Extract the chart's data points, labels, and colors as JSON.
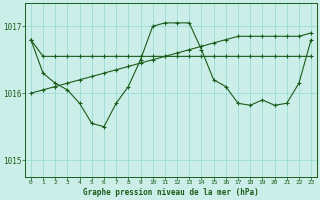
{
  "title": "Graphe pression niveau de la mer (hPa)",
  "background_color": "#cceee8",
  "grid_color": "#99ddd5",
  "line_color": "#1a5c1a",
  "ylim": [
    1014.75,
    1017.35
  ],
  "yticks": [
    1015,
    1016,
    1017
  ],
  "xlim": [
    -0.5,
    23.5
  ],
  "xticks": [
    0,
    1,
    2,
    3,
    4,
    5,
    6,
    7,
    8,
    9,
    10,
    11,
    12,
    13,
    14,
    15,
    16,
    17,
    18,
    19,
    20,
    21,
    22,
    23
  ],
  "s1": [
    1016.8,
    1016.55,
    1016.55,
    1016.55,
    1016.55,
    1016.55,
    1016.55,
    1016.55,
    1016.55,
    1016.55,
    1016.55,
    1016.55,
    1016.55,
    1016.55,
    1016.55,
    1016.55,
    1016.55,
    1016.55,
    1016.55,
    1016.55,
    1016.55,
    1016.55,
    1016.55,
    1016.55
  ],
  "s2": [
    1016.0,
    1016.05,
    1016.1,
    1016.15,
    1016.2,
    1016.25,
    1016.3,
    1016.35,
    1016.4,
    1016.45,
    1016.5,
    1016.55,
    1016.6,
    1016.65,
    1016.7,
    1016.75,
    1016.8,
    1016.85,
    1016.85,
    1016.85,
    1016.85,
    1016.85,
    1016.85,
    1016.9
  ],
  "s3": [
    1016.8,
    1016.3,
    1016.15,
    1016.05,
    1015.85,
    1015.55,
    1015.5,
    1015.85,
    1016.1,
    1016.5,
    1017.0,
    1017.05,
    1017.05,
    1017.05,
    1016.65,
    1016.2,
    1016.1,
    1015.85,
    1015.82,
    1015.9,
    1015.82,
    1015.85,
    1016.15,
    1016.8
  ]
}
